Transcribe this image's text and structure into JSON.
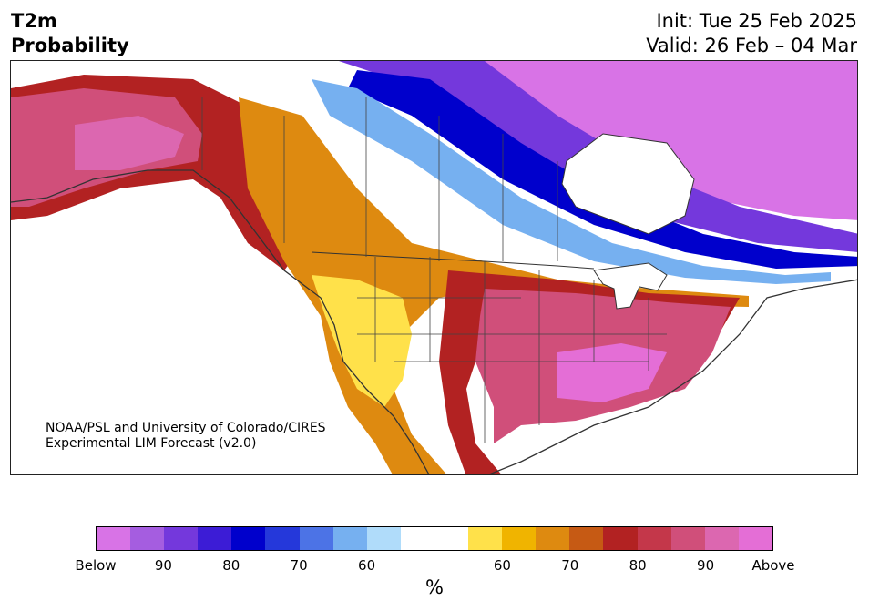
{
  "header": {
    "title_line1": "T2m",
    "title_line2": "Probability",
    "init": "Init: Tue 25 Feb 2025",
    "valid": "Valid: 26 Feb – 04 Mar"
  },
  "credit": {
    "line1": "NOAA/PSL and University of Colorado/CIRES",
    "line2": "Experimental LIM Forecast (v2.0)"
  },
  "colorbar": {
    "unit": "%",
    "colors": [
      "#d873e6",
      "#a55de0",
      "#7438dc",
      "#3c1cd6",
      "#0000cc",
      "#2538da",
      "#4c73e6",
      "#76b0f0",
      "#b0dcfa",
      "#ffffff",
      "#ffffff",
      "#ffe14a",
      "#f0b400",
      "#de8a10",
      "#c65a14",
      "#b22222",
      "#c4374a",
      "#d04f7a",
      "#dc67b0",
      "#e46ed6"
    ],
    "tick_labels": [
      "Below",
      "90",
      "80",
      "70",
      "60",
      "60",
      "70",
      "80",
      "90",
      "Above"
    ]
  },
  "map": {
    "region": "North America",
    "palette": {
      "below_strong": "#d873e6",
      "below_mid": "#7438dc",
      "below_core": "#0000cc",
      "below_light": "#76b0f0",
      "neutral": "#ffffff",
      "above_light": "#ffe14a",
      "above_mid": "#de8a10",
      "above_core": "#b22222",
      "above_strong": "#d04f7a",
      "above_max": "#e46ed6"
    }
  }
}
